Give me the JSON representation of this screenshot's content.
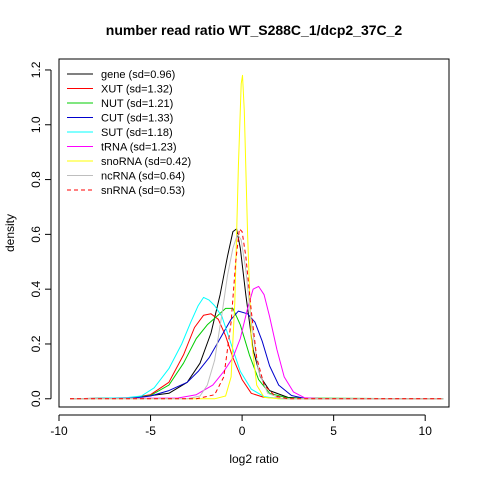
{
  "chart_data": {
    "type": "line",
    "title": "number read ratio WT_S288C_1/dcp2_37C_2",
    "xlabel": "log2 ratio",
    "ylabel": "density",
    "xlim": [
      -10,
      11.3
    ],
    "ylim": [
      -0.03,
      1.24
    ],
    "xticks": [
      -10,
      -5,
      0,
      5,
      10
    ],
    "yticks": [
      0.0,
      0.2,
      0.4,
      0.6,
      0.8,
      1.0,
      1.2
    ],
    "grid": false,
    "legend_position": "top-left",
    "series": [
      {
        "name": "gene (sd=0.96)",
        "color": "#000000",
        "dash": "",
        "points": [
          [
            -9.4,
            0
          ],
          [
            -6,
            0.003
          ],
          [
            -4,
            0.02
          ],
          [
            -3,
            0.06
          ],
          [
            -2.3,
            0.13
          ],
          [
            -1.7,
            0.24
          ],
          [
            -1.2,
            0.38
          ],
          [
            -0.8,
            0.52
          ],
          [
            -0.5,
            0.61
          ],
          [
            -0.3,
            0.62
          ],
          [
            -0.1,
            0.55
          ],
          [
            0.2,
            0.38
          ],
          [
            0.6,
            0.18
          ],
          [
            1.0,
            0.08
          ],
          [
            1.5,
            0.03
          ],
          [
            2.5,
            0.005
          ],
          [
            4,
            0
          ],
          [
            11,
            0
          ]
        ]
      },
      {
        "name": "XUT (sd=1.32)",
        "color": "#ff0000",
        "dash": "",
        "points": [
          [
            -9.4,
            0
          ],
          [
            -6,
            0.004
          ],
          [
            -5,
            0.015
          ],
          [
            -4,
            0.06
          ],
          [
            -3.2,
            0.16
          ],
          [
            -2.6,
            0.26
          ],
          [
            -2.1,
            0.305
          ],
          [
            -1.7,
            0.31
          ],
          [
            -1.3,
            0.29
          ],
          [
            -0.9,
            0.23
          ],
          [
            -0.5,
            0.15
          ],
          [
            0,
            0.07
          ],
          [
            0.5,
            0.02
          ],
          [
            1.2,
            0.005
          ],
          [
            2.5,
            0
          ],
          [
            11,
            0
          ]
        ]
      },
      {
        "name": "NUT (sd=1.21)",
        "color": "#00cd00",
        "dash": "",
        "points": [
          [
            -9.4,
            0
          ],
          [
            -6,
            0.003
          ],
          [
            -5,
            0.012
          ],
          [
            -4,
            0.05
          ],
          [
            -3.2,
            0.13
          ],
          [
            -2.5,
            0.22
          ],
          [
            -1.9,
            0.27
          ],
          [
            -1.4,
            0.3
          ],
          [
            -0.9,
            0.33
          ],
          [
            -0.5,
            0.33
          ],
          [
            -0.1,
            0.27
          ],
          [
            0.4,
            0.16
          ],
          [
            0.9,
            0.07
          ],
          [
            1.5,
            0.02
          ],
          [
            2.5,
            0.003
          ],
          [
            11,
            0
          ]
        ]
      },
      {
        "name": "CUT (sd=1.33)",
        "color": "#0000cd",
        "dash": "",
        "points": [
          [
            -9.4,
            0
          ],
          [
            -6,
            0.002
          ],
          [
            -5,
            0.01
          ],
          [
            -4,
            0.03
          ],
          [
            -3,
            0.06
          ],
          [
            -2.4,
            0.1
          ],
          [
            -1.8,
            0.15
          ],
          [
            -1.2,
            0.22
          ],
          [
            -0.6,
            0.29
          ],
          [
            -0.2,
            0.32
          ],
          [
            0.3,
            0.31
          ],
          [
            0.7,
            0.28
          ],
          [
            1.1,
            0.21
          ],
          [
            1.5,
            0.12
          ],
          [
            2,
            0.05
          ],
          [
            2.7,
            0.012
          ],
          [
            3.5,
            0
          ],
          [
            11,
            0
          ]
        ]
      },
      {
        "name": "SUT (sd=1.18)",
        "color": "#00ffff",
        "dash": "",
        "points": [
          [
            -9.4,
            0
          ],
          [
            -6.3,
            0.004
          ],
          [
            -5.5,
            0.01
          ],
          [
            -4.8,
            0.04
          ],
          [
            -4,
            0.11
          ],
          [
            -3.3,
            0.2
          ],
          [
            -2.8,
            0.28
          ],
          [
            -2.4,
            0.34
          ],
          [
            -2.1,
            0.37
          ],
          [
            -1.8,
            0.36
          ],
          [
            -1.5,
            0.34
          ],
          [
            -1.1,
            0.3
          ],
          [
            -0.6,
            0.2
          ],
          [
            -0.1,
            0.1
          ],
          [
            0.5,
            0.035
          ],
          [
            1.2,
            0.008
          ],
          [
            2,
            0
          ],
          [
            11,
            0
          ]
        ]
      },
      {
        "name": "tRNA (sd=1.23)",
        "color": "#ff00ff",
        "dash": "",
        "points": [
          [
            -9.4,
            0
          ],
          [
            -3.5,
            0.003
          ],
          [
            -2.5,
            0.015
          ],
          [
            -1.6,
            0.05
          ],
          [
            -1,
            0.1
          ],
          [
            -0.5,
            0.15
          ],
          [
            -0.1,
            0.22
          ],
          [
            0.3,
            0.33
          ],
          [
            0.6,
            0.4
          ],
          [
            0.9,
            0.41
          ],
          [
            1.2,
            0.38
          ],
          [
            1.5,
            0.3
          ],
          [
            1.9,
            0.18
          ],
          [
            2.3,
            0.08
          ],
          [
            2.8,
            0.025
          ],
          [
            3.4,
            0.004
          ],
          [
            4.5,
            0
          ],
          [
            11,
            0
          ]
        ]
      },
      {
        "name": "snoRNA (sd=0.42)",
        "color": "#ffff00",
        "dash": "",
        "points": [
          [
            -9.4,
            0
          ],
          [
            -1.5,
            0
          ],
          [
            -0.9,
            0.01
          ],
          [
            -0.6,
            0.08
          ],
          [
            -0.4,
            0.35
          ],
          [
            -0.2,
            0.85
          ],
          [
            -0.05,
            1.15
          ],
          [
            0.02,
            1.18
          ],
          [
            0.12,
            1.05
          ],
          [
            0.3,
            0.6
          ],
          [
            0.5,
            0.22
          ],
          [
            0.8,
            0.05
          ],
          [
            1.2,
            0.005
          ],
          [
            2,
            0
          ],
          [
            11,
            0
          ]
        ]
      },
      {
        "name": "ncRNA (sd=0.64)",
        "color": "#bebebe",
        "dash": "",
        "points": [
          [
            -9.4,
            0
          ],
          [
            -3,
            0
          ],
          [
            -2.3,
            0.01
          ],
          [
            -1.9,
            0.05
          ],
          [
            -1.5,
            0.14
          ],
          [
            -1.1,
            0.31
          ],
          [
            -0.8,
            0.45
          ],
          [
            -0.5,
            0.55
          ],
          [
            -0.25,
            0.6
          ],
          [
            -0.05,
            0.58
          ],
          [
            0.2,
            0.47
          ],
          [
            0.5,
            0.28
          ],
          [
            0.9,
            0.1
          ],
          [
            1.4,
            0.02
          ],
          [
            2.2,
            0
          ],
          [
            11,
            0
          ]
        ]
      },
      {
        "name": "snRNA (sd=0.53)",
        "color": "#ff0000",
        "dash": "4,3",
        "points": [
          [
            -9.4,
            0
          ],
          [
            -2.5,
            0
          ],
          [
            -1.5,
            0.015
          ],
          [
            -1.0,
            0.08
          ],
          [
            -0.6,
            0.28
          ],
          [
            -0.35,
            0.5
          ],
          [
            -0.15,
            0.62
          ],
          [
            0.0,
            0.61
          ],
          [
            0.2,
            0.52
          ],
          [
            0.5,
            0.32
          ],
          [
            0.8,
            0.15
          ],
          [
            1.2,
            0.05
          ],
          [
            1.8,
            0.01
          ],
          [
            2.5,
            0
          ],
          [
            11,
            0
          ]
        ]
      }
    ]
  }
}
